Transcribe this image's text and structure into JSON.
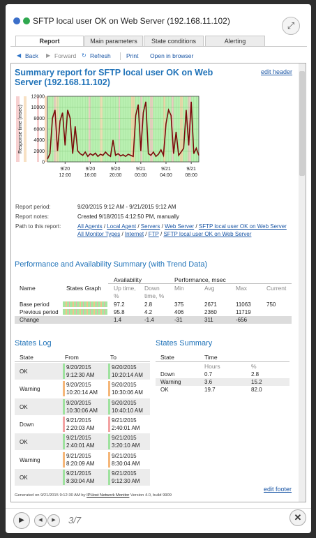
{
  "header": {
    "title": "SFTP local user OK on Web Server (192.168.11.102)"
  },
  "tabs": [
    "Report",
    "Main parameters",
    "State conditions",
    "Alerting"
  ],
  "toolbar": [
    "Back",
    "Forward",
    "Refresh",
    "Print",
    "Open in browser"
  ],
  "report": {
    "title": "Summary report for SFTP local user OK on Web Server (192.168.11.102)",
    "edit_header": "edit header",
    "chart": {
      "type": "line",
      "y_label": "Response time (msec)",
      "ylim": [
        0,
        12000
      ],
      "yticks": [
        0,
        2000,
        4000,
        6000,
        8000,
        10000,
        12000
      ],
      "grid": true,
      "categories": [
        null,
        null,
        null,
        null,
        null,
        null,
        null,
        "9/20 12:00",
        null,
        null,
        null,
        null,
        null,
        null,
        null,
        null,
        null,
        "9/20 16:00",
        null,
        null,
        null,
        null,
        null,
        null,
        null,
        null,
        null,
        "9/20 20:00",
        null,
        null,
        null,
        null,
        null,
        null,
        null,
        null,
        null,
        "9/21 00:00",
        null,
        null,
        null,
        null,
        null,
        null,
        null,
        null,
        null,
        "9/21 04:00",
        null,
        null,
        null,
        null,
        null,
        null,
        null,
        null,
        null,
        "9/21 08:00",
        null,
        null,
        null
      ],
      "series": [
        {
          "color": "#7a0a0a",
          "values": [
            500,
            1500,
            8000,
            9500,
            2000,
            7500,
            9000,
            3000,
            9500,
            8000,
            1500,
            6500,
            2000,
            1500,
            1200,
            1800,
            1000,
            1500,
            1200,
            1600,
            1000,
            1400,
            1200,
            1800,
            1300,
            1000,
            4000,
            1200,
            1500,
            1100,
            1300,
            1000,
            1400,
            1200,
            1000,
            8500,
            10500,
            2000,
            9000,
            11000,
            1500,
            1200,
            1800,
            1000,
            1400,
            2200,
            1200,
            7000,
            9500,
            8500,
            1500,
            5500,
            1200,
            1800,
            2500,
            9500,
            3000,
            11000,
            1500,
            2500,
            1200
          ]
        }
      ]
    },
    "info": [
      {
        "label": "Report period:",
        "value": "9/20/2015 9:12 AM - 9/21/2015 9:12 AM"
      },
      {
        "label": "Report notes:",
        "value": "Created 9/18/2015 4:12:50 PM, manually"
      },
      {
        "label": "Path to this report:",
        "paths": [
          [
            "All Agents",
            "Local Agent",
            "Servers",
            "Web Server",
            "SFTP local user OK on Web Server"
          ],
          [
            "All Monitor Types",
            "Internet",
            "FTP",
            "SFTP local user OK on Web Server"
          ]
        ]
      }
    ],
    "separator": "/",
    "performance": {
      "title": "Performance and Availability Summary (with Trend Data)",
      "headers": {
        "name": "Name",
        "graph": "States Graph",
        "availability": "Availability",
        "performance": "Performance, msec",
        "up": "Up time, %",
        "down": "Down time, %",
        "min": "Min",
        "avg": "Avg",
        "max": "Max",
        "current": "Current"
      },
      "rows": [
        [
          "Base period",
          "97.2",
          "2.8",
          "375",
          "2671",
          "11063",
          "750"
        ],
        [
          "Previous period",
          "95.8",
          "4.2",
          "406",
          "2360",
          "11719"
        ],
        [
          "Change",
          "1.4",
          "-1.4",
          "-31",
          "311",
          "-656"
        ]
      ]
    },
    "states_log": {
      "title": "States Log",
      "headers": [
        "State",
        "From",
        "To"
      ],
      "rows": [
        {
          "state": "OK",
          "from": "9/20/2015 9:12:30 AM",
          "to": "9/20/2015 10:20:14 AM",
          "color": "#9fe29f"
        },
        {
          "state": "Warning",
          "from": "9/20/2015 10:20:14 AM",
          "to": "9/20/2015 10:30:06 AM",
          "color": "#f5b77a"
        },
        {
          "state": "OK",
          "from": "9/20/2015 10:30:06 AM",
          "to": "9/20/2015 10:40:10 AM",
          "color": "#9fe29f"
        },
        {
          "state": "Down",
          "from": "9/21/2015 2:20:03 AM",
          "to": "9/21/2015 2:40:01 AM",
          "color": "#f3a3a3"
        },
        {
          "state": "OK",
          "from": "9/21/2015 2:40:01 AM",
          "to": "9/21/2015 3:20:10 AM",
          "color": "#9fe29f"
        },
        {
          "state": "Warning",
          "from": "9/21/2015 8:20:09 AM",
          "to": "9/21/2015 8:30:04 AM",
          "color": "#f5b77a"
        },
        {
          "state": "OK",
          "from": "9/21/2015 8:30:04 AM",
          "to": "9/21/2015 9:12:30 AM",
          "color": "#9fe29f"
        }
      ]
    },
    "states_summary": {
      "title": "States Summary",
      "headers": {
        "state": "State",
        "time": "Time",
        "hours": "Hours",
        "percent": "%"
      },
      "rows": [
        [
          "Down",
          "0.7",
          "2.8"
        ],
        [
          "Warning",
          "3.6",
          "15.2"
        ],
        [
          "OK",
          "19.7",
          "82.0"
        ]
      ]
    },
    "edit_footer": "edit footer",
    "footer": {
      "prefix": "Generated on 9/21/2015 9:12:30 AM by",
      "link": "IPHost Network Monitor",
      "suffix": "Version 4.0, build 9909"
    }
  },
  "pager": "3/7"
}
